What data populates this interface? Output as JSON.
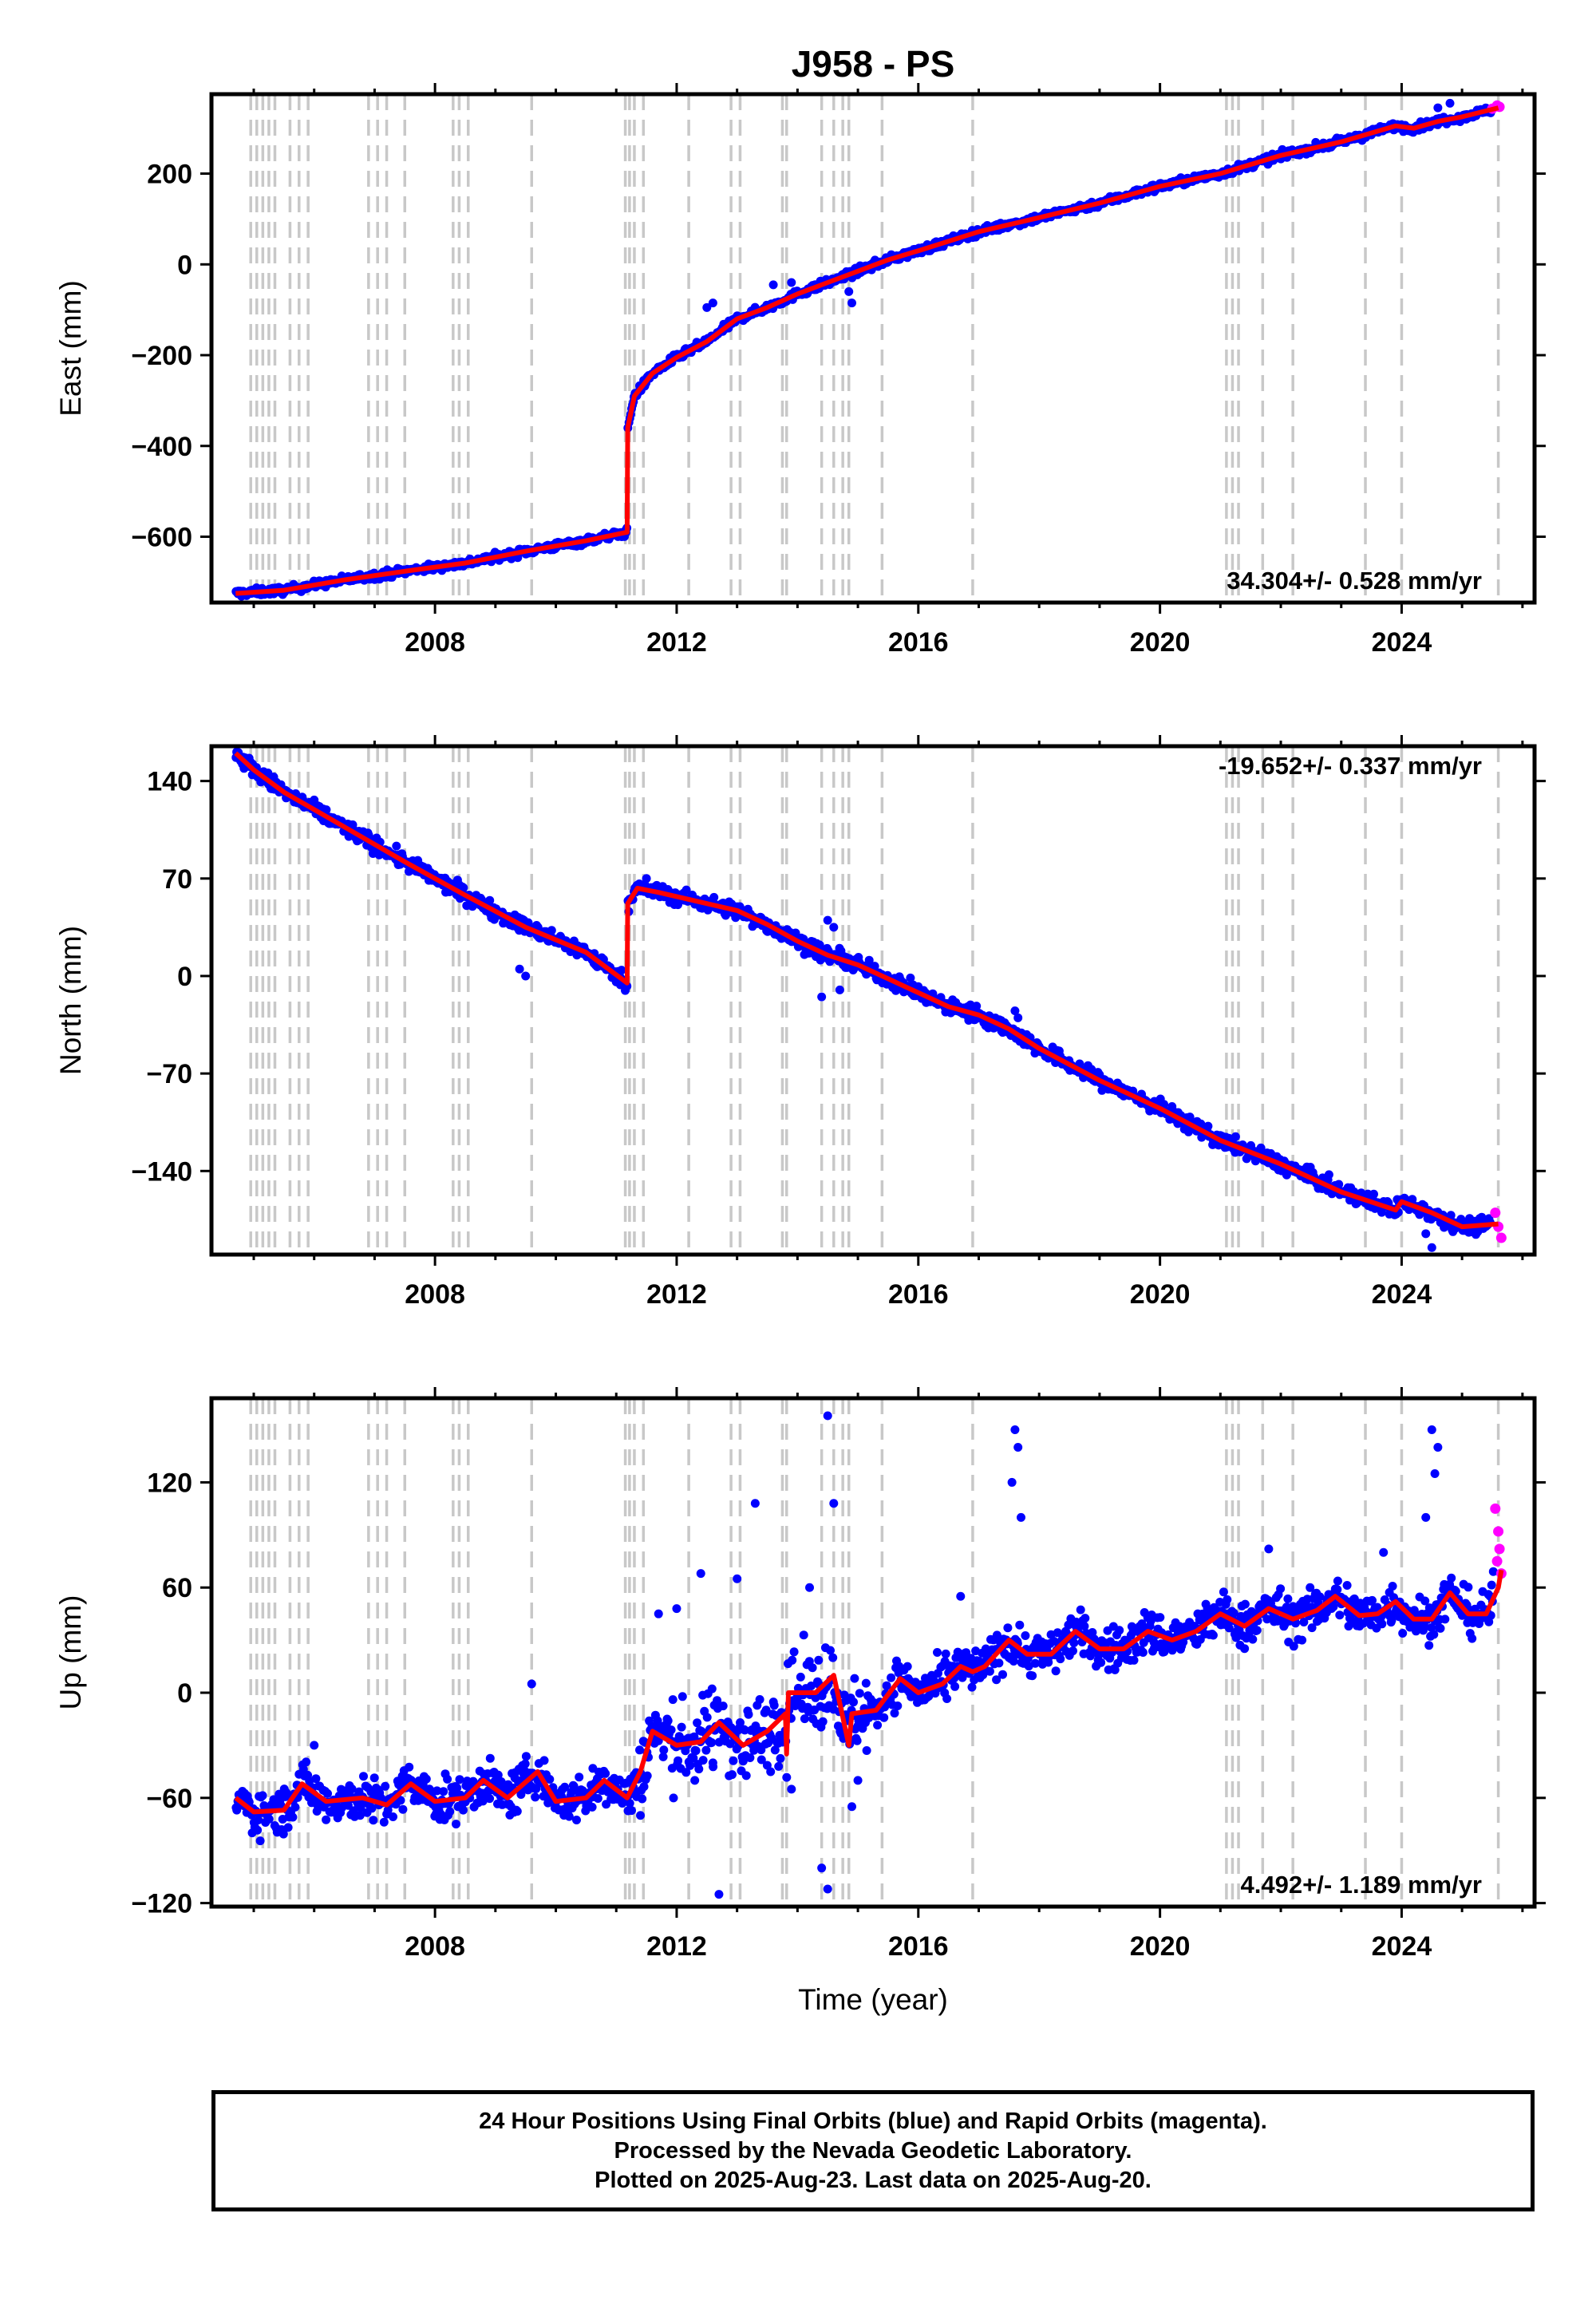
{
  "chart_data": {
    "title": "J958 - PS",
    "type": "scatter",
    "xlabel": "Time (year)",
    "x_ticks": [
      "2008",
      "2012",
      "2016",
      "2020",
      "2024"
    ],
    "xlim": [
      2004.3,
      2026.2
    ],
    "colors": {
      "final": "#0000ff",
      "rapid": "#ff00ff",
      "model": "#ff0000",
      "event": "#c8c8c8"
    },
    "event_lines": [
      2004.95,
      2005.05,
      2005.15,
      2005.25,
      2005.35,
      2005.6,
      2005.75,
      2005.9,
      2006.9,
      2007.05,
      2007.2,
      2007.5,
      2008.3,
      2008.4,
      2008.55,
      2009.6,
      2011.15,
      2011.22,
      2011.3,
      2011.45,
      2012.2,
      2012.9,
      2013.05,
      2013.75,
      2013.82,
      2014.4,
      2014.6,
      2014.75,
      2014.85,
      2015.4,
      2016.9,
      2021.1,
      2021.2,
      2021.3,
      2021.7,
      2022.2,
      2023.4,
      2024.0,
      2025.6
    ],
    "panels": [
      {
        "name": "east",
        "ylabel": "East (mm)",
        "ylim": [
          -745,
          375
        ],
        "y_ticks": [
          -600,
          -400,
          -200,
          0,
          200
        ],
        "y_tick_labels": [
          "−600",
          "−400",
          "−200",
          "0",
          "200"
        ],
        "rate_label": "34.304+/- 0.528 mm/yr",
        "rate_pos": "bottom-right",
        "model": [
          [
            2004.7,
            -725
          ],
          [
            2005.5,
            -718
          ],
          [
            2006.5,
            -695
          ],
          [
            2007.5,
            -676
          ],
          [
            2008.5,
            -658
          ],
          [
            2009.5,
            -632
          ],
          [
            2010.5,
            -609
          ],
          [
            2011.18,
            -590
          ],
          [
            2011.19,
            -360
          ],
          [
            2011.3,
            -290
          ],
          [
            2011.6,
            -240
          ],
          [
            2012.0,
            -205
          ],
          [
            2012.5,
            -170
          ],
          [
            2013.0,
            -120
          ],
          [
            2013.5,
            -95
          ],
          [
            2014.0,
            -65
          ],
          [
            2014.5,
            -40
          ],
          [
            2015.0,
            -15
          ],
          [
            2015.5,
            10
          ],
          [
            2016.0,
            30
          ],
          [
            2017.0,
            72
          ],
          [
            2018.0,
            103
          ],
          [
            2019.0,
            135
          ],
          [
            2020.0,
            172
          ],
          [
            2021.0,
            200
          ],
          [
            2022.0,
            240
          ],
          [
            2023.0,
            270
          ],
          [
            2023.9,
            305
          ],
          [
            2024.2,
            300
          ],
          [
            2024.6,
            315
          ],
          [
            2025.0,
            325
          ],
          [
            2025.6,
            345
          ]
        ],
        "scatter_noise": 6,
        "outliers": [
          [
            2012.6,
            -85
          ],
          [
            2012.5,
            -95
          ],
          [
            2014.9,
            -85
          ],
          [
            2014.85,
            -60
          ],
          [
            2013.9,
            -40
          ],
          [
            2013.6,
            -45
          ],
          [
            2024.6,
            345
          ],
          [
            2024.8,
            355
          ]
        ],
        "rapid": [
          [
            2025.5,
            343
          ],
          [
            2025.58,
            350
          ],
          [
            2025.62,
            347
          ]
        ]
      },
      {
        "name": "north",
        "ylabel": "North (mm)",
        "ylim": [
          -200,
          165
        ],
        "y_ticks": [
          -140,
          -70,
          0,
          70,
          140
        ],
        "y_tick_labels": [
          "−140",
          "−70",
          "0",
          "70",
          "140"
        ],
        "rate_label": "-19.652+/- 0.337 mm/yr",
        "rate_pos": "top-right",
        "model": [
          [
            2004.7,
            160
          ],
          [
            2005.0,
            148
          ],
          [
            2005.5,
            132
          ],
          [
            2006.5,
            107
          ],
          [
            2007.5,
            82
          ],
          [
            2008.5,
            58
          ],
          [
            2009.5,
            35
          ],
          [
            2010.5,
            17
          ],
          [
            2011.18,
            -5
          ],
          [
            2011.19,
            52
          ],
          [
            2011.35,
            63
          ],
          [
            2011.7,
            60
          ],
          [
            2012.5,
            52
          ],
          [
            2013.0,
            47
          ],
          [
            2013.5,
            37
          ],
          [
            2014.0,
            25
          ],
          [
            2014.5,
            15
          ],
          [
            2015.0,
            8
          ],
          [
            2015.5,
            -2
          ],
          [
            2016.0,
            -12
          ],
          [
            2016.5,
            -22
          ],
          [
            2017.0,
            -28
          ],
          [
            2017.5,
            -38
          ],
          [
            2018.0,
            -52
          ],
          [
            2019.0,
            -75
          ],
          [
            2020.0,
            -95
          ],
          [
            2021.0,
            -118
          ],
          [
            2022.0,
            -135
          ],
          [
            2023.0,
            -155
          ],
          [
            2023.9,
            -168
          ],
          [
            2024.0,
            -162
          ],
          [
            2024.5,
            -170
          ],
          [
            2025.0,
            -180
          ],
          [
            2025.6,
            -178
          ]
        ],
        "scatter_noise": 4,
        "outliers": [
          [
            2009.5,
            0
          ],
          [
            2009.4,
            5
          ],
          [
            2014.5,
            40
          ],
          [
            2014.6,
            35
          ],
          [
            2014.4,
            -15
          ],
          [
            2014.7,
            -10
          ],
          [
            2017.6,
            -25
          ],
          [
            2017.65,
            -30
          ],
          [
            2024.5,
            -195
          ],
          [
            2024.4,
            -185
          ],
          [
            2011.5,
            70
          ]
        ],
        "rapid": [
          [
            2025.55,
            -170
          ],
          [
            2025.6,
            -180
          ],
          [
            2025.65,
            -188
          ]
        ]
      },
      {
        "name": "up",
        "ylabel": "Up (mm)",
        "ylim": [
          -122,
          168
        ],
        "y_ticks": [
          -120,
          -60,
          0,
          60,
          120
        ],
        "y_tick_labels": [
          "−120",
          "−60",
          "0",
          "60",
          "120"
        ],
        "rate_label": "4.492+/- 1.189 mm/yr",
        "rate_pos": "bottom-right",
        "model": [
          [
            2004.7,
            -60
          ],
          [
            2005.0,
            -68
          ],
          [
            2005.5,
            -67
          ],
          [
            2005.8,
            -52
          ],
          [
            2006.2,
            -62
          ],
          [
            2006.8,
            -60
          ],
          [
            2007.2,
            -64
          ],
          [
            2007.6,
            -52
          ],
          [
            2008.0,
            -62
          ],
          [
            2008.5,
            -60
          ],
          [
            2008.8,
            -50
          ],
          [
            2009.2,
            -60
          ],
          [
            2009.7,
            -45
          ],
          [
            2010.0,
            -62
          ],
          [
            2010.5,
            -60
          ],
          [
            2010.8,
            -50
          ],
          [
            2011.18,
            -60
          ],
          [
            2011.4,
            -45
          ],
          [
            2011.6,
            -22
          ],
          [
            2012.0,
            -30
          ],
          [
            2012.4,
            -28
          ],
          [
            2012.7,
            -17
          ],
          [
            2013.1,
            -30
          ],
          [
            2013.5,
            -22
          ],
          [
            2013.8,
            -12
          ],
          [
            2013.82,
            -35
          ],
          [
            2013.85,
            0
          ],
          [
            2014.3,
            0
          ],
          [
            2014.6,
            10
          ],
          [
            2014.85,
            -30
          ],
          [
            2014.9,
            -12
          ],
          [
            2015.3,
            -10
          ],
          [
            2015.7,
            8
          ],
          [
            2016.0,
            0
          ],
          [
            2016.4,
            5
          ],
          [
            2016.7,
            15
          ],
          [
            2016.9,
            12
          ],
          [
            2017.1,
            15
          ],
          [
            2017.5,
            30
          ],
          [
            2017.8,
            22
          ],
          [
            2018.2,
            22
          ],
          [
            2018.6,
            35
          ],
          [
            2019.0,
            25
          ],
          [
            2019.4,
            25
          ],
          [
            2019.8,
            35
          ],
          [
            2020.2,
            30
          ],
          [
            2020.6,
            35
          ],
          [
            2021.0,
            45
          ],
          [
            2021.4,
            38
          ],
          [
            2021.8,
            48
          ],
          [
            2022.2,
            42
          ],
          [
            2022.6,
            47
          ],
          [
            2022.9,
            55
          ],
          [
            2023.3,
            44
          ],
          [
            2023.6,
            45
          ],
          [
            2023.9,
            52
          ],
          [
            2024.2,
            42
          ],
          [
            2024.5,
            42
          ],
          [
            2024.8,
            57
          ],
          [
            2025.1,
            45
          ],
          [
            2025.4,
            45
          ],
          [
            2025.6,
            60
          ],
          [
            2025.65,
            70
          ]
        ],
        "scatter_noise": 9,
        "outliers": [
          [
            2014.5,
            158
          ],
          [
            2013.3,
            108
          ],
          [
            2014.6,
            108
          ],
          [
            2012.7,
            -115
          ],
          [
            2014.5,
            -112
          ],
          [
            2014.4,
            -100
          ],
          [
            2017.6,
            150
          ],
          [
            2017.65,
            140
          ],
          [
            2017.55,
            120
          ],
          [
            2017.7,
            100
          ],
          [
            2024.5,
            150
          ],
          [
            2024.6,
            140
          ],
          [
            2024.55,
            125
          ],
          [
            2024.4,
            100
          ],
          [
            2012.0,
            48
          ],
          [
            2011.7,
            45
          ],
          [
            2012.4,
            68
          ],
          [
            2013.0,
            65
          ],
          [
            2014.2,
            60
          ],
          [
            2016.7,
            55
          ],
          [
            2021.8,
            82
          ],
          [
            2023.7,
            80
          ],
          [
            2009.6,
            5
          ],
          [
            2012.3,
            -50
          ],
          [
            2013.9,
            -55
          ],
          [
            2014.9,
            -65
          ],
          [
            2015.0,
            -50
          ],
          [
            2011.4,
            -70
          ],
          [
            2006.0,
            -30
          ],
          [
            2012.6,
            -40
          ]
        ],
        "rapid": [
          [
            2025.55,
            105
          ],
          [
            2025.6,
            92
          ],
          [
            2025.62,
            82
          ],
          [
            2025.58,
            75
          ],
          [
            2025.65,
            68
          ]
        ]
      }
    ]
  },
  "footer": {
    "line1": "24 Hour Positions Using Final Orbits (blue) and Rapid Orbits (magenta).",
    "line2": "Processed by the Nevada Geodetic Laboratory.",
    "line3": "Plotted on 2025-Aug-23. Last data on 2025-Aug-20."
  }
}
